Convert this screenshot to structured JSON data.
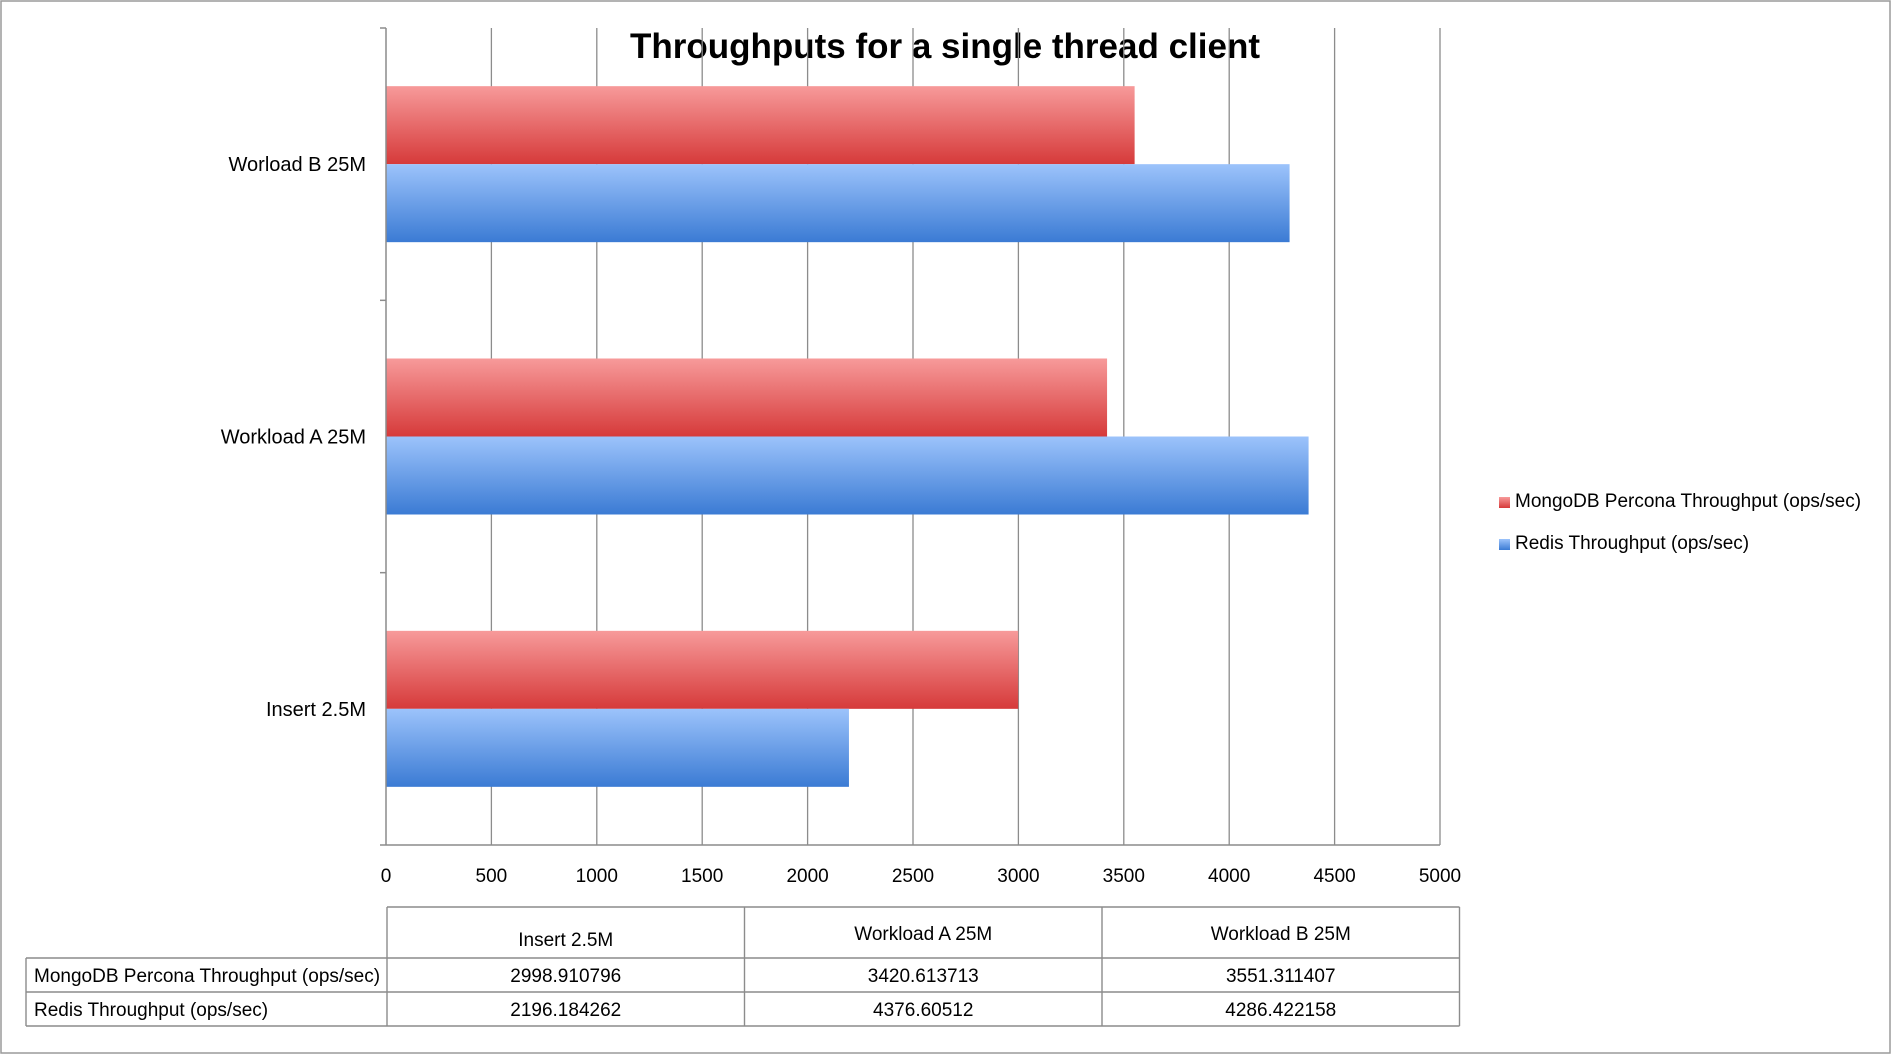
{
  "chart_data": {
    "type": "bar",
    "orientation": "horizontal",
    "title": "Throughputs for a single thread client",
    "categories": [
      "Insert 2.5M",
      "Workload A 25M",
      "Worload B 25M"
    ],
    "table_headers": [
      "Insert 2.5M",
      "Workload A 25M",
      "Workload B 25M"
    ],
    "series": [
      {
        "name": "MongoDB Percona Throughput (ops/sec)",
        "color": "#e04a4a",
        "values": [
          2998.910796,
          3420.613713,
          3551.311407
        ],
        "display_values": [
          "2998.910796",
          "3420.613713",
          "3551.311407"
        ]
      },
      {
        "name": "Redis Throughput (ops/sec)",
        "color": "#4a86d8",
        "values": [
          2196.184262,
          4376.60512,
          4286.422158
        ],
        "display_values": [
          "2196.184262",
          "4376.60512",
          "4286.422158"
        ]
      }
    ],
    "xlim": [
      0,
      5000
    ],
    "xticks": [
      0,
      500,
      1000,
      1500,
      2000,
      2500,
      3000,
      3500,
      4000,
      4500,
      5000
    ],
    "xticks_labels": [
      "0",
      "500",
      "1000",
      "1500",
      "2000",
      "2500",
      "3000",
      "3500",
      "4000",
      "4500",
      "5000"
    ],
    "grid": true,
    "legend_position": "right",
    "data_table": true
  }
}
